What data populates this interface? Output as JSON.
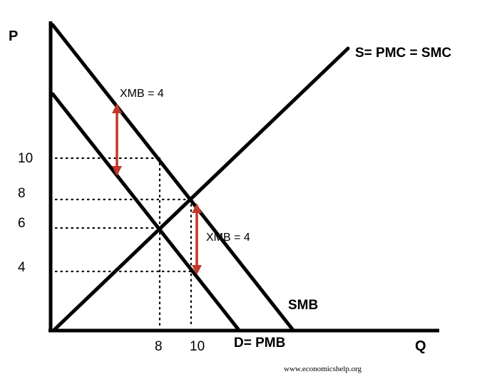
{
  "diagram": {
    "axis_labels": {
      "y": "P",
      "x": "Q"
    },
    "y_ticks": [
      "10",
      "8",
      "6",
      "4"
    ],
    "x_ticks": [
      "8",
      "10"
    ],
    "curves": {
      "supply": "S= PMC = SMC",
      "smb": "SMB",
      "demand": "D= PMB"
    },
    "annotations": {
      "xmb_upper": "XMB = 4",
      "xmb_lower": "XMB = 4"
    },
    "arrow_color": "#c0392b",
    "credit": "www.economicshelp.org"
  }
}
